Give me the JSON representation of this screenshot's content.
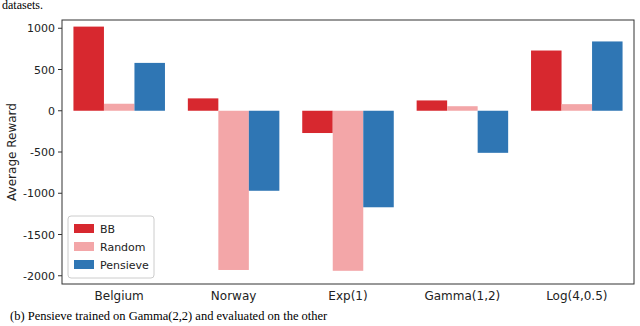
{
  "chart_data": {
    "type": "bar",
    "annotations": [
      "datasets.",
      "(b) Pensieve trained on Gamma(2,2) and evaluated on the other"
    ],
    "y_label": "Average Reward",
    "categories": [
      "Belgium",
      "Norway",
      "Exp(1)",
      "Gamma(1,2)",
      "Log(4,0.5)"
    ],
    "series": [
      {
        "name": "BB",
        "color": "#d7282f",
        "values": [
          1020,
          150,
          -270,
          125,
          730
        ]
      },
      {
        "name": "Random",
        "color": "#f3a6a8",
        "values": [
          85,
          -1930,
          -1940,
          55,
          80
        ]
      },
      {
        "name": "Pensieve",
        "color": "#2f76b4",
        "values": [
          580,
          -970,
          -1170,
          -510,
          840
        ]
      }
    ],
    "ylim": [
      -2100,
      1100
    ],
    "yticks": [
      -2000,
      -1500,
      -1000,
      -500,
      0,
      500,
      1000
    ],
    "grid": false,
    "legend": "lower left"
  }
}
